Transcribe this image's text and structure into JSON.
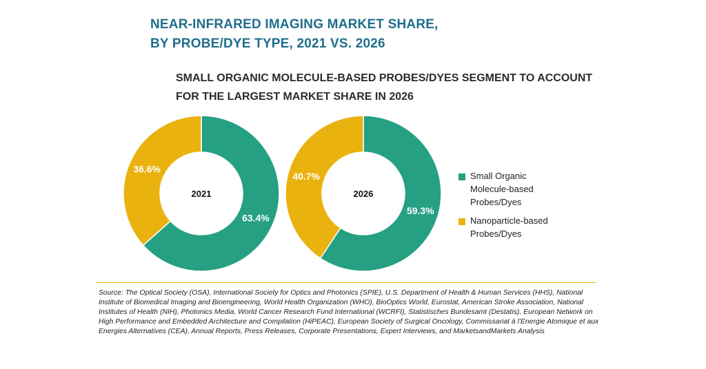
{
  "header": {
    "title_line1": "NEAR-INFRARED IMAGING MARKET SHARE,",
    "title_line2": "BY PROBE/DYE TYPE, 2021 VS. 2026",
    "subtitle_line1": "SMALL ORGANIC MOLECULE-BASED PROBES/DYES SEGMENT TO ACCOUNT",
    "subtitle_line2": "FOR THE LARGEST MARKET SHARE IN 2026"
  },
  "colors": {
    "small_organic": "#26a083",
    "nanoparticle": "#eab20f",
    "title": "#1f6e8c"
  },
  "chart_data": [
    {
      "type": "pie",
      "center_label": "2021",
      "labels": [
        "Small Organic Molecule-based Probes/Dyes",
        "Nanoparticle-based Probes/Dyes"
      ],
      "values": [
        63.4,
        36.6
      ],
      "value_labels": [
        "63.4%",
        "36.6%"
      ]
    },
    {
      "type": "pie",
      "center_label": "2026",
      "labels": [
        "Small Organic Molecule-based Probes/Dyes",
        "Nanoparticle-based Probes/Dyes"
      ],
      "values": [
        59.3,
        40.7
      ],
      "value_labels": [
        "59.3%",
        "40.7%"
      ]
    }
  ],
  "legend": {
    "items": [
      {
        "label": "Small Organic Molecule-based Probes/Dyes",
        "line1": "Small Organic",
        "line2": "Molecule-based",
        "line3": "Probes/Dyes"
      },
      {
        "label": "Nanoparticle-based Probes/Dyes",
        "line1": "Nanoparticle-based",
        "line2": "Probes/Dyes"
      }
    ]
  },
  "source": "Source: The Optical Society (OSA), International Society for Optics and Photonics (SPIE), U.S. Department of Health & Human Services (HHS), National Institute of Biomedical Imaging and Bioengineering, World Health Organization (WHO), BioOptics World, Eurostat, American Stroke Association, National Institutes of Health (NIH), Photonics Media, World Cancer Research Fund International (WCRFI), Statistisches Bundesamt (Destatis), European Network on High Performance and Embedded Architecture and Compilation (HiPEAC), European Society of Surgical Oncology, Commissariat à l'Energie Atomique et aux Energies Alternatives (CEA), Annual Reports, Press Releases, Corporate Presentations, Expert Interviews, and MarketsandMarkets Analysis"
}
